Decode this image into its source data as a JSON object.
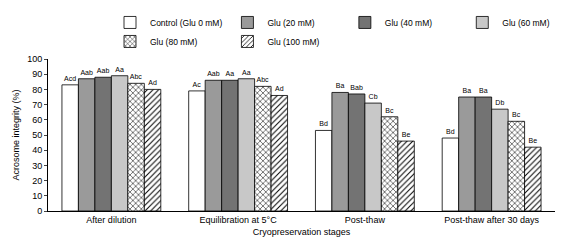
{
  "chart_data": {
    "type": "bar",
    "x_label": "Cryopreservation stages",
    "y_label": "Acrosome integrity (%)",
    "categories": [
      "After dilution",
      "Equilibration at 5°C",
      "Post-thaw",
      "Post-thaw after 30 days"
    ],
    "series": [
      {
        "name": "Control (Glu 0 mM)",
        "color": "#ffffff",
        "values": [
          83,
          79,
          53,
          48
        ],
        "letters": [
          "Acd",
          "Ac",
          "Bd",
          "Bd"
        ]
      },
      {
        "name": "Glu (20 mM)",
        "color": "#9a9a9a",
        "values": [
          87,
          86,
          78,
          75
        ],
        "letters": [
          "Aab",
          "Aab",
          "Ba",
          "Ba"
        ]
      },
      {
        "name": "Glu (40 mM)",
        "color": "#737373",
        "values": [
          88,
          86,
          77,
          75
        ],
        "letters": [
          "Aab",
          "Aa",
          "Bab",
          "Ba"
        ]
      },
      {
        "name": "Glu (60 mM)",
        "color": "#c8c8c8",
        "values": [
          89,
          87,
          71,
          67
        ],
        "letters": [
          "Aa",
          "Aa",
          "Cb",
          "Db"
        ]
      },
      {
        "name": "Glu (80 mM)",
        "color": "#ffffff",
        "marker": "crosshatch",
        "values": [
          84,
          82,
          62,
          59
        ],
        "letters": [
          "Abc",
          "Abc",
          "Bc",
          "Bc"
        ]
      },
      {
        "name": "Glu (100 mM)",
        "color": "#ffffff",
        "marker": "diagonal",
        "values": [
          80,
          76,
          46,
          42
        ],
        "letters": [
          "Ad",
          "Ad",
          "Be",
          "Be"
        ]
      }
    ],
    "ylim": [
      0,
      100
    ],
    "yticks": [
      0,
      10,
      20,
      30,
      40,
      50,
      60,
      70,
      80,
      90,
      100
    ],
    "grid": false,
    "legend": "top right",
    "data_labels": false
  }
}
